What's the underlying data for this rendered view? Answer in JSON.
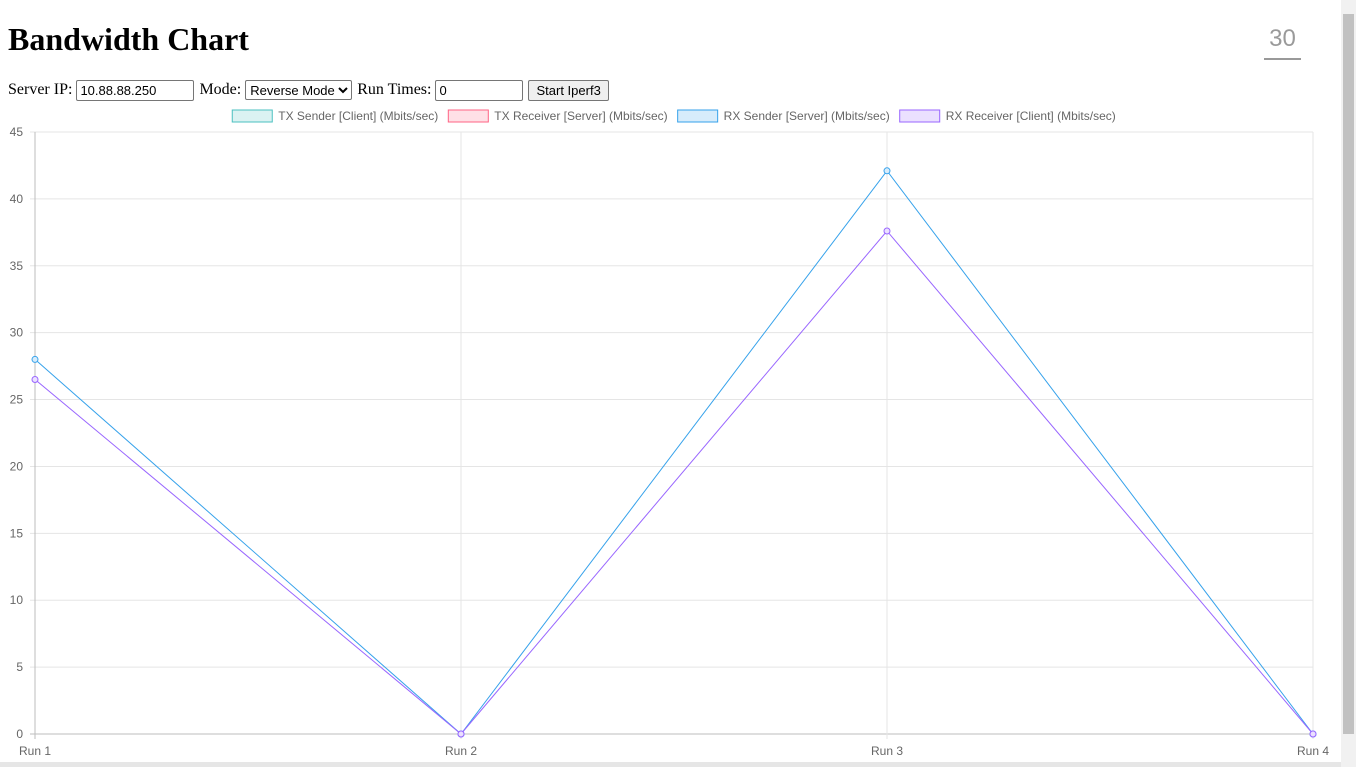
{
  "page": {
    "title": "Bandwidth Chart",
    "counter": "30"
  },
  "controls": {
    "server_ip_label": "Server IP:",
    "server_ip_value": "10.88.88.250",
    "mode_label": "Mode:",
    "mode_value": "Reverse Mode",
    "run_times_label": "Run Times:",
    "run_times_value": "0",
    "start_label": "Start Iperf3"
  },
  "chart_data": {
    "type": "line",
    "title": "",
    "xlabel": "",
    "ylabel": "",
    "categories": [
      "Run 1",
      "Run 2",
      "Run 3",
      "Run 4"
    ],
    "ylim": [
      0,
      45
    ],
    "yticks": [
      0,
      5,
      10,
      15,
      20,
      25,
      30,
      35,
      40,
      45
    ],
    "grid": true,
    "legend_position": "top-center",
    "series": [
      {
        "name": "TX Sender [Client] (Mbits/sec)",
        "values": [
          null,
          null,
          null,
          null
        ],
        "color": "#4bc0c0",
        "fill": "#dbf2f2"
      },
      {
        "name": "TX Receiver [Server] (Mbits/sec)",
        "values": [
          null,
          null,
          null,
          null
        ],
        "color": "#ff6384",
        "fill": "#ffe0e6"
      },
      {
        "name": "RX Sender [Server] (Mbits/sec)",
        "values": [
          28,
          0,
          42.1,
          0
        ],
        "color": "#36a2eb",
        "fill": "#d7ecfb"
      },
      {
        "name": "RX Receiver [Client] (Mbits/sec)",
        "values": [
          26.5,
          0,
          37.6,
          0
        ],
        "color": "#9966ff",
        "fill": "#ebe0ff"
      }
    ]
  }
}
